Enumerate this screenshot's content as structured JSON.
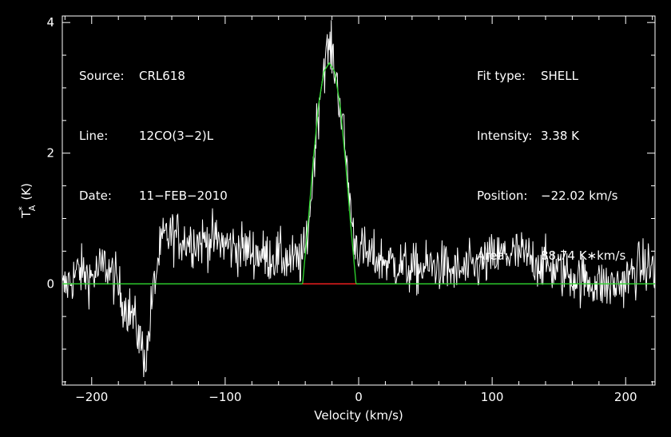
{
  "info_left": [
    {
      "label": "Source:",
      "value": "CRL618"
    },
    {
      "label": "Line:",
      "value": "12CO(3−2)L"
    },
    {
      "label": "Date:",
      "value": "11−FEB−2010"
    }
  ],
  "info_right": [
    {
      "label": "Fit type:",
      "value": "SHELL"
    },
    {
      "label": "Intensity:",
      "value": "3.38 K"
    },
    {
      "label": "Position:",
      "value": "−22.02 km/s"
    },
    {
      "label": "Area:",
      "value": "88.74 K∗km/s"
    }
  ],
  "chart_data": {
    "type": "line",
    "title": "",
    "xlabel": "Velocity (km/s)",
    "ylabel_main": "T",
    "ylabel_sup": "*",
    "ylabel_sub": "A",
    "ylabel_unit": "(K)",
    "xlim": [
      -222,
      222
    ],
    "ylim": [
      -1.55,
      4.1
    ],
    "xticks": [
      -200,
      -100,
      0,
      100,
      200
    ],
    "xtick_labels": [
      "−200",
      "−100",
      "0",
      "100",
      "200"
    ],
    "yticks": [
      0,
      2,
      4
    ],
    "ytick_labels": [
      "0",
      "2",
      "4"
    ],
    "grid": false,
    "series": [
      {
        "role": "spectrum",
        "color": "#ffffff",
        "x": [
          -222,
          -210,
          -200,
          -190,
          -182,
          -176,
          -170,
          -166,
          -162,
          -159,
          -155,
          -150,
          -146,
          -140,
          -130,
          -120,
          -110,
          -100,
          -90,
          -80,
          -70,
          -60,
          -50,
          -44,
          -40,
          -36,
          -32,
          -28,
          -25,
          -22,
          -19,
          -16,
          -12,
          -8,
          -4,
          0,
          5,
          10,
          20,
          30,
          40,
          50,
          60,
          70,
          80,
          90,
          100,
          110,
          120,
          130,
          140,
          150,
          160,
          170,
          180,
          190,
          200,
          210,
          222
        ],
        "y": [
          -0.1,
          0.2,
          0.1,
          0.3,
          0.05,
          -0.3,
          -0.45,
          -0.7,
          -1.0,
          -1.15,
          -0.3,
          0.4,
          0.7,
          0.75,
          0.68,
          0.65,
          0.68,
          0.6,
          0.55,
          0.5,
          0.42,
          0.42,
          0.35,
          0.35,
          0.5,
          1.2,
          2.3,
          3.1,
          3.45,
          3.62,
          3.45,
          3.05,
          2.45,
          1.6,
          0.75,
          0.55,
          0.45,
          0.4,
          0.35,
          0.3,
          0.2,
          0.25,
          0.28,
          0.18,
          0.2,
          0.28,
          0.38,
          0.45,
          0.45,
          0.38,
          0.28,
          0.2,
          0.12,
          0.05,
          0.0,
          -0.05,
          0.05,
          0.25,
          0.25
        ],
        "noise": 0.28
      },
      {
        "role": "fit",
        "color": "#2fd82f",
        "x": [
          -222,
          -42,
          -38,
          -34,
          -30,
          -26,
          -22,
          -18,
          -14,
          -10,
          -6,
          -2,
          222
        ],
        "y": [
          0,
          0,
          0.9,
          1.9,
          2.75,
          3.25,
          3.38,
          3.25,
          2.75,
          1.9,
          0.9,
          0,
          0
        ]
      },
      {
        "role": "fit-window",
        "color": "#ff2020",
        "x": [
          -42,
          -2
        ],
        "y": [
          0,
          0
        ]
      }
    ]
  }
}
